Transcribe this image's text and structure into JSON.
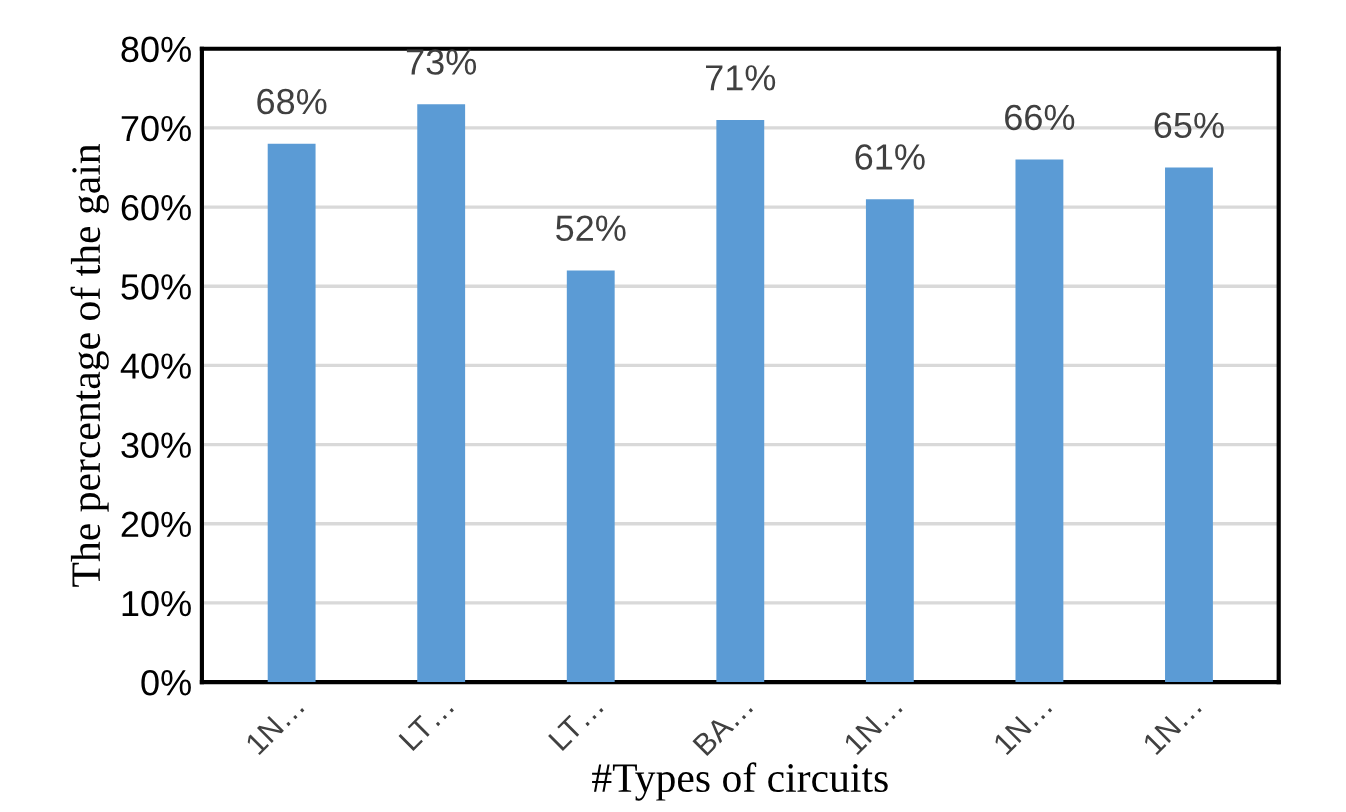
{
  "chart_data": {
    "type": "bar",
    "xlabel": "#Types of circuits",
    "ylabel": "The percentage of the gain",
    "categories": [
      "1N…",
      "LT…",
      "LT…",
      "BA…",
      "1N…",
      "1N…",
      "1N…"
    ],
    "values": [
      68,
      73,
      52,
      71,
      61,
      66,
      65
    ],
    "value_labels": [
      "68%",
      "73%",
      "52%",
      "71%",
      "61%",
      "66%",
      "65%"
    ],
    "color": "#5b9bd5",
    "ylim": [
      0,
      80
    ],
    "yticks": [
      {
        "value": 0,
        "label": "0%"
      },
      {
        "value": 10,
        "label": "10%"
      },
      {
        "value": 20,
        "label": "20%"
      },
      {
        "value": 30,
        "label": "30%"
      },
      {
        "value": 40,
        "label": "40%"
      },
      {
        "value": 50,
        "label": "50%"
      },
      {
        "value": 60,
        "label": "60%"
      },
      {
        "value": 70,
        "label": "70%"
      },
      {
        "value": 80,
        "label": "80%"
      }
    ],
    "grid": "y",
    "legend": false
  }
}
